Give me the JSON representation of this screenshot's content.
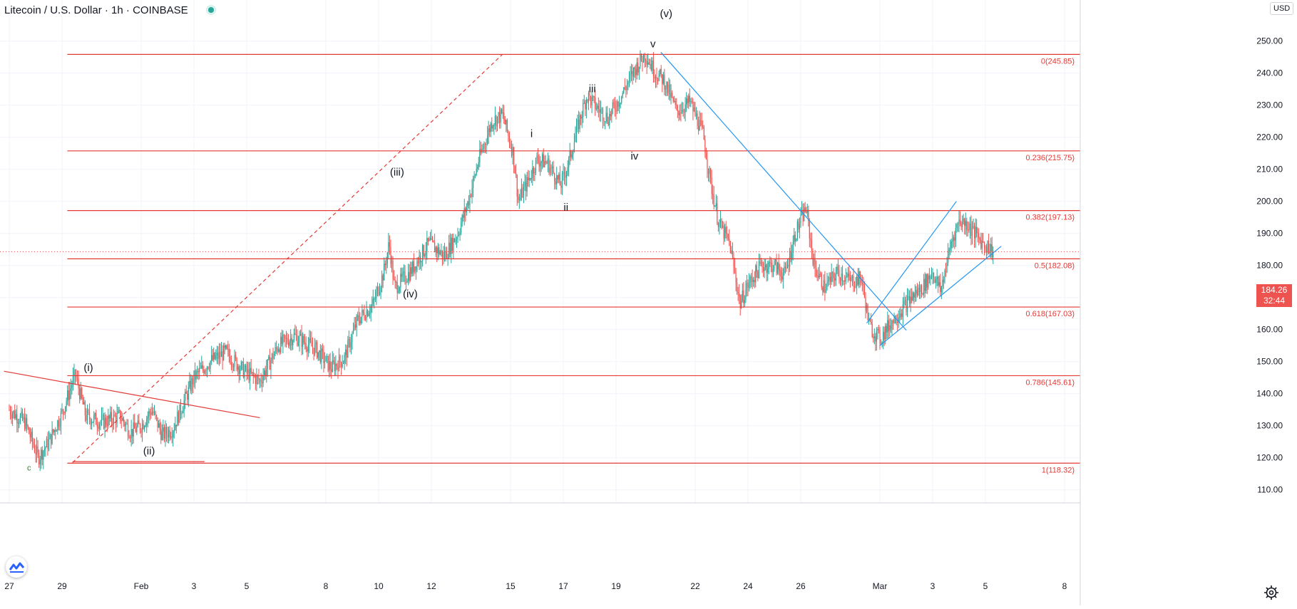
{
  "header": {
    "title": "Litecoin / U.S. Dollar · 1h · COINBASE"
  },
  "currency_button": "USD",
  "price_tag": {
    "price": "184.26",
    "countdown": "32:44"
  },
  "colors": {
    "up": "#26a69a",
    "down": "#ef5350",
    "fib_line": "#e53935",
    "trend_blue": "#2196f3",
    "axis_text": "#131722",
    "grid": "#f0f3fa"
  },
  "icons": {
    "logo": "tradingview-logo-icon",
    "settings": "gear-icon",
    "status": "market-status-dot"
  },
  "chart_data": {
    "type": "candlestick",
    "symbol": "Litecoin / U.S. Dollar",
    "interval": "1h",
    "exchange": "COINBASE",
    "y_axis": {
      "range": [
        104,
        256
      ],
      "ticks": [
        "110.00",
        "120.00",
        "130.00",
        "140.00",
        "150.00",
        "160.00",
        "170.00",
        "180.00",
        "190.00",
        "200.00",
        "210.00",
        "220.00",
        "230.00",
        "240.00",
        "250.00"
      ]
    },
    "x_axis": {
      "ticks": [
        {
          "label": "27",
          "day": 0
        },
        {
          "label": "29",
          "day": 2
        },
        {
          "label": "Feb",
          "day": 5
        },
        {
          "label": "3",
          "day": 7
        },
        {
          "label": "5",
          "day": 9
        },
        {
          "label": "8",
          "day": 12
        },
        {
          "label": "10",
          "day": 14
        },
        {
          "label": "12",
          "day": 16
        },
        {
          "label": "15",
          "day": 19
        },
        {
          "label": "17",
          "day": 21
        },
        {
          "label": "19",
          "day": 23
        },
        {
          "label": "22",
          "day": 26
        },
        {
          "label": "24",
          "day": 28
        },
        {
          "label": "26",
          "day": 30
        },
        {
          "label": "Mar",
          "day": 33
        },
        {
          "label": "3",
          "day": 35
        },
        {
          "label": "5",
          "day": 37
        },
        {
          "label": "8",
          "day": 40
        }
      ]
    },
    "price_path": [
      [
        0,
        135
      ],
      [
        0.6,
        131
      ],
      [
        1.1,
        120
      ],
      [
        1.5,
        125
      ],
      [
        2,
        134
      ],
      [
        2.5,
        146
      ],
      [
        2.9,
        133
      ],
      [
        3.5,
        131
      ],
      [
        4.2,
        133
      ],
      [
        4.6,
        128
      ],
      [
        5.0,
        130
      ],
      [
        5.4,
        135
      ],
      [
        5.8,
        127
      ],
      [
        6.2,
        129
      ],
      [
        6.6,
        137
      ],
      [
        7.0,
        145
      ],
      [
        7.6,
        150
      ],
      [
        8.2,
        153
      ],
      [
        8.9,
        147
      ],
      [
        9.5,
        144
      ],
      [
        10.2,
        155
      ],
      [
        10.8,
        158
      ],
      [
        11.6,
        154
      ],
      [
        12.2,
        148
      ],
      [
        12.7,
        151
      ],
      [
        13.2,
        163
      ],
      [
        13.8,
        168
      ],
      [
        14.2,
        178
      ],
      [
        14.4,
        187
      ],
      [
        14.6,
        173
      ],
      [
        15.2,
        178
      ],
      [
        15.9,
        187
      ],
      [
        16.5,
        183
      ],
      [
        17.0,
        190
      ],
      [
        17.4,
        200
      ],
      [
        17.8,
        213
      ],
      [
        18.3,
        225
      ],
      [
        18.7,
        227
      ],
      [
        19.1,
        215
      ],
      [
        19.3,
        200
      ],
      [
        19.7,
        207
      ],
      [
        20.0,
        213
      ],
      [
        20.4,
        212
      ],
      [
        20.9,
        205
      ],
      [
        21.2,
        212
      ],
      [
        21.6,
        225
      ],
      [
        21.9,
        233
      ],
      [
        22.3,
        229
      ],
      [
        22.7,
        226
      ],
      [
        23.2,
        233
      ],
      [
        23.7,
        241
      ],
      [
        24.1,
        246
      ],
      [
        24.5,
        240
      ],
      [
        24.8,
        238
      ],
      [
        25.3,
        228
      ],
      [
        25.8,
        231
      ],
      [
        26.3,
        221
      ],
      [
        26.6,
        205
      ],
      [
        26.9,
        193
      ],
      [
        27.3,
        187
      ],
      [
        27.7,
        168
      ],
      [
        28.0,
        174
      ],
      [
        28.5,
        180
      ],
      [
        29.0,
        180
      ],
      [
        29.4,
        177
      ],
      [
        29.8,
        190
      ],
      [
        30.2,
        198
      ],
      [
        30.5,
        180
      ],
      [
        30.9,
        173
      ],
      [
        31.4,
        178
      ],
      [
        31.9,
        175
      ],
      [
        32.3,
        176
      ],
      [
        32.6,
        161
      ],
      [
        33.0,
        157
      ],
      [
        33.4,
        162
      ],
      [
        33.8,
        166
      ],
      [
        34.2,
        170
      ],
      [
        34.6,
        173
      ],
      [
        35.0,
        178
      ],
      [
        35.3,
        172
      ],
      [
        35.7,
        187
      ],
      [
        36.0,
        194
      ],
      [
        36.3,
        193
      ],
      [
        36.6,
        190
      ],
      [
        36.9,
        187
      ],
      [
        37.1,
        186
      ],
      [
        37.3,
        184.26
      ]
    ],
    "fib_levels": [
      {
        "label": "0(245.85)",
        "value": 245.85
      },
      {
        "label": "0.236(215.75)",
        "value": 215.75
      },
      {
        "label": "0.382(197.13)",
        "value": 197.13
      },
      {
        "label": "0.5(182.08)",
        "value": 182.08
      },
      {
        "label": "0.618(167.03)",
        "value": 167.03
      },
      {
        "label": "0.786(145.61)",
        "value": 145.61
      },
      {
        "label": "1(118.32)",
        "value": 118.32
      }
    ],
    "current_price": 184.26,
    "wave_labels": [
      {
        "text": "(v)",
        "day": 24.9,
        "value": 257.5
      },
      {
        "text": "v",
        "day": 24.4,
        "value": 248
      },
      {
        "text": "iii",
        "day": 22.1,
        "value": 234
      },
      {
        "text": "i",
        "day": 19.8,
        "value": 220
      },
      {
        "text": "iv",
        "day": 23.7,
        "value": 213
      },
      {
        "text": "ii",
        "day": 21.1,
        "value": 197
      },
      {
        "text": "(iii)",
        "day": 14.7,
        "value": 208
      },
      {
        "text": "(iv)",
        "day": 15.2,
        "value": 170
      },
      {
        "text": "(i)",
        "day": 3.0,
        "value": 147
      },
      {
        "text": "(ii)",
        "day": 5.3,
        "value": 121
      },
      {
        "text": "c",
        "day": 0.75,
        "value": 116
      }
    ],
    "trend_lines": [
      {
        "color": "red",
        "style": "solid",
        "from": [
          -0.2,
          147
        ],
        "to": [
          9.5,
          132.5
        ]
      },
      {
        "color": "red",
        "style": "dashed",
        "from": [
          2.4,
          118.5
        ],
        "to": [
          18.7,
          245.9
        ]
      },
      {
        "color": "red",
        "style": "solid",
        "from": [
          2.4,
          118.8
        ],
        "to": [
          7.4,
          118.8
        ]
      },
      {
        "color": "blue",
        "style": "solid",
        "from": [
          24.7,
          246.5
        ],
        "to": [
          34.0,
          159.8
        ]
      },
      {
        "color": "blue",
        "style": "solid",
        "from": [
          32.5,
          162
        ],
        "to": [
          35.9,
          200
        ]
      },
      {
        "color": "blue",
        "style": "solid",
        "from": [
          33.0,
          155
        ],
        "to": [
          37.6,
          186
        ]
      }
    ]
  }
}
